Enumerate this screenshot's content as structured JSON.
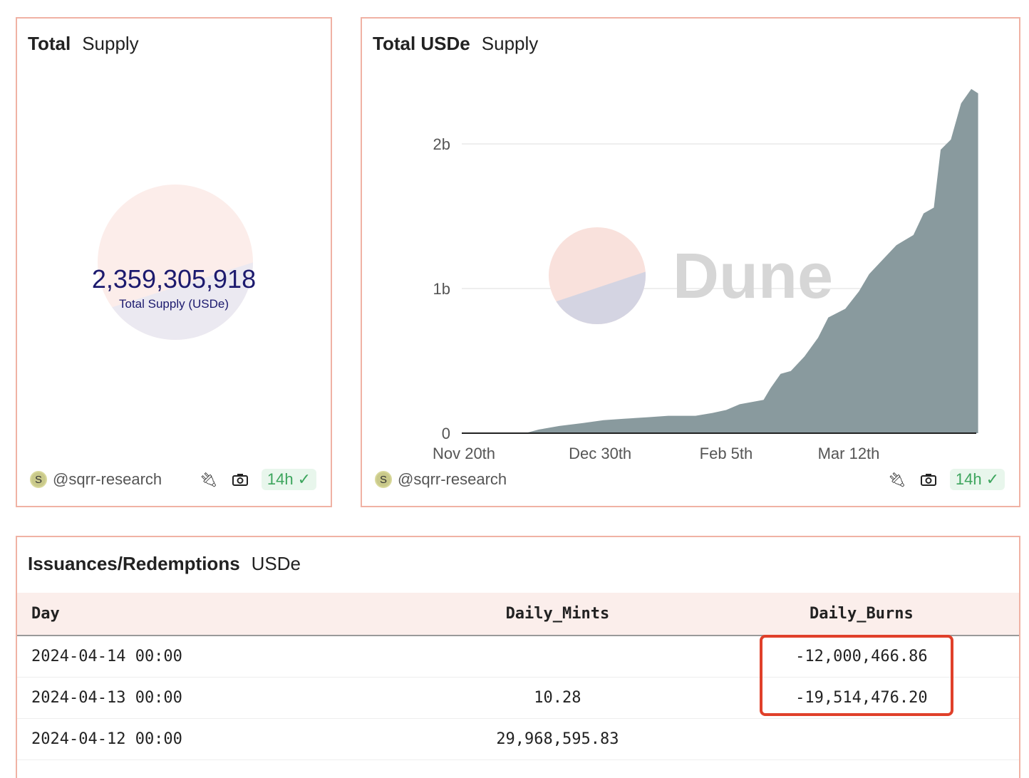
{
  "card1": {
    "title_bold": "Total",
    "title_rest": "Supply",
    "value": "2,359,305,918",
    "label": "Total Supply (USDe)",
    "author": "@sqrr-research",
    "badge": "14h"
  },
  "card2": {
    "title_bold": "Total USDe",
    "title_rest": "Supply",
    "watermark": "Dune",
    "author": "@sqrr-research",
    "badge": "14h"
  },
  "chart_data": {
    "type": "area",
    "color": "#899a9e",
    "ylim": [
      0,
      2.45
    ],
    "yticks": [
      {
        "v": 0,
        "label": "0"
      },
      {
        "v": 1,
        "label": "1b"
      },
      {
        "v": 2,
        "label": "2b"
      }
    ],
    "xticks": [
      {
        "d": "2023-11-20",
        "label": "Nov 20th"
      },
      {
        "d": "2023-12-30",
        "label": "Dec 30th"
      },
      {
        "d": "2024-02-05",
        "label": "Feb 5th"
      },
      {
        "d": "2024-03-12",
        "label": "Mar 12th"
      }
    ],
    "x": [
      "2023-12-08",
      "2023-12-12",
      "2023-12-18",
      "2023-12-25",
      "2023-12-31",
      "2024-01-06",
      "2024-01-13",
      "2024-01-19",
      "2024-01-27",
      "2024-02-01",
      "2024-02-05",
      "2024-02-09",
      "2024-02-16",
      "2024-02-18",
      "2024-02-21",
      "2024-02-24",
      "2024-02-28",
      "2024-03-03",
      "2024-03-06",
      "2024-03-11",
      "2024-03-15",
      "2024-03-18",
      "2024-03-22",
      "2024-03-26",
      "2024-03-31",
      "2024-04-03",
      "2024-04-06",
      "2024-04-08",
      "2024-04-11",
      "2024-04-14",
      "2024-04-17",
      "2024-04-19"
    ],
    "y": [
      0,
      0.025,
      0.05,
      0.07,
      0.09,
      0.1,
      0.11,
      0.12,
      0.12,
      0.14,
      0.16,
      0.2,
      0.23,
      0.31,
      0.41,
      0.43,
      0.53,
      0.66,
      0.8,
      0.86,
      0.98,
      1.1,
      1.2,
      1.3,
      1.37,
      1.52,
      1.56,
      1.96,
      2.03,
      2.28,
      2.38,
      2.35
    ]
  },
  "card3": {
    "title_bold": "Issuances/Redemptions",
    "title_rest": "USDe",
    "columns": [
      "Day",
      "Daily_Mints",
      "Daily_Burns"
    ],
    "rows": [
      [
        "2024-04-14 00:00",
        "",
        "-12,000,466.86"
      ],
      [
        "2024-04-13 00:00",
        "10.28",
        "-19,514,476.20"
      ],
      [
        "2024-04-12 00:00",
        "29,968,595.83",
        ""
      ]
    ]
  }
}
